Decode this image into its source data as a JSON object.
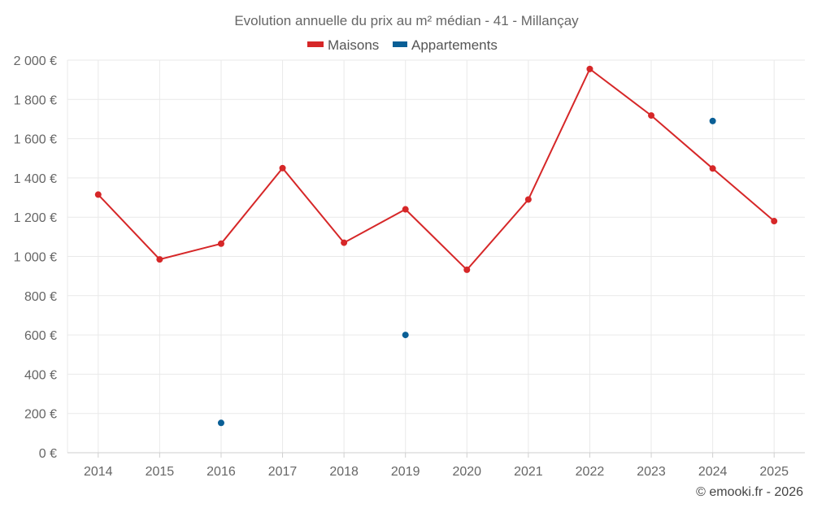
{
  "chart_data": {
    "type": "line",
    "title": "Evolution annuelle du prix au m² médian - 41 - Millançay",
    "categories": [
      "2014",
      "2015",
      "2016",
      "2017",
      "2018",
      "2019",
      "2020",
      "2021",
      "2022",
      "2023",
      "2024",
      "2025"
    ],
    "series": [
      {
        "name": "Maisons",
        "color": "#d62728",
        "style": "line",
        "values": [
          1315,
          985,
          1065,
          1450,
          1070,
          1240,
          932,
          1290,
          1955,
          1718,
          1448,
          1180
        ]
      },
      {
        "name": "Appartements",
        "color": "#0a5f96",
        "style": "points",
        "values": [
          null,
          null,
          152,
          null,
          null,
          600,
          null,
          null,
          null,
          null,
          1690,
          null
        ]
      }
    ],
    "ylim": [
      0,
      2000
    ],
    "yticks": [
      0,
      200,
      400,
      600,
      800,
      1000,
      1200,
      1400,
      1600,
      1800,
      2000
    ],
    "ytick_labels": [
      "0 €",
      "200 €",
      "400 €",
      "600 €",
      "800 €",
      "1 000 €",
      "1 200 €",
      "1 400 €",
      "1 600 €",
      "1 800 €",
      "2 000 €"
    ],
    "xlabel": "",
    "ylabel": "",
    "grid": true,
    "legend_position": "top-center",
    "credit": "© emooki.fr - 2026"
  }
}
